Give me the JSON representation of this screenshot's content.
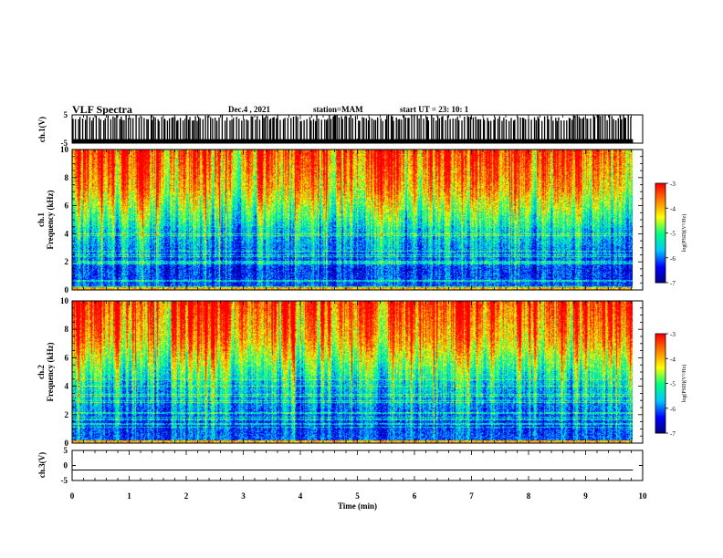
{
  "header": {
    "title": "VLF Spectra",
    "date": "Dec.4 , 2021",
    "station": "station=MAM",
    "start": "start UT = 23: 10: 1"
  },
  "colors": {
    "colormap": [
      "#000080",
      "#0000ff",
      "#00c8ff",
      "#00ff80",
      "#ffff00",
      "#ff8000",
      "#ff0000",
      "#ffffff"
    ]
  },
  "chart_data": [
    {
      "type": "line",
      "name": "ch.1 waveform",
      "ylabel": "ch.1(V)",
      "ylim": [
        -5,
        5
      ],
      "y_ticks": [
        "5",
        "-5"
      ],
      "note": "saturated spiky waveform spanning full range"
    },
    {
      "type": "heatmap",
      "name": "ch.1 spectrogram",
      "ylabel": "ch.1\nFrequency (kHz)",
      "xlim": [
        0,
        10
      ],
      "ylim": [
        0,
        10
      ],
      "y_ticks": [
        "0",
        "2",
        "4",
        "6",
        "8",
        "10"
      ],
      "data_extent_x": [
        0,
        9.83
      ],
      "colorbar": {
        "label": "log(PSD)(V²/Hz)",
        "range": [
          -7,
          -3
        ],
        "ticks": [
          "-3",
          "-4",
          "-5",
          "-6",
          "-7"
        ]
      }
    },
    {
      "type": "heatmap",
      "name": "ch.2 spectrogram",
      "ylabel": "ch.2\nFrequency (kHz)",
      "xlim": [
        0,
        10
      ],
      "ylim": [
        0,
        10
      ],
      "y_ticks": [
        "0",
        "2",
        "4",
        "6",
        "8",
        "10"
      ],
      "data_extent_x": [
        0,
        9.83
      ],
      "colorbar": {
        "label": "log(PSD)(V²/Hz)",
        "range": [
          -7,
          -3
        ],
        "ticks": [
          "-3",
          "-4",
          "-5",
          "-6",
          "-7"
        ]
      }
    },
    {
      "type": "line",
      "name": "ch.3 waveform",
      "ylabel": "ch.3(V)",
      "ylim": [
        -5,
        5
      ],
      "y_ticks": [
        "5",
        "0",
        "-5"
      ],
      "x": [
        0,
        9.83
      ],
      "y": [
        -1.5,
        -1.5
      ],
      "xlabel": "Time (min)",
      "x_ticks": [
        "0",
        "1",
        "2",
        "3",
        "4",
        "5",
        "6",
        "7",
        "8",
        "9",
        "10"
      ]
    }
  ]
}
